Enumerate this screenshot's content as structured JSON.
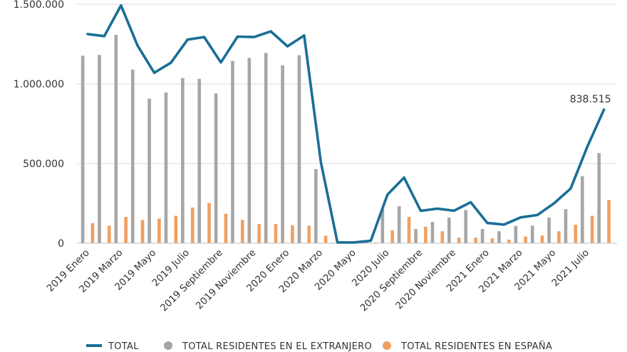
{
  "chart_data": {
    "type": "bar+line",
    "ylim": [
      0,
      1500000
    ],
    "y_ticks": [
      "0",
      "500.000",
      "1.000.000",
      "1.500.000"
    ],
    "y_tick_values": [
      0,
      500000,
      1000000,
      1500000
    ],
    "x_tick_labels": [
      "2019 Enero",
      "2019 Marzo",
      "2019 Mayo",
      "2019 Julio",
      "2019 Septiembre",
      "2019 Noviembre",
      "2020 Enero",
      "2020 Marzo",
      "2020 Mayo",
      "2020 Julio",
      "2020 Septiembre",
      "2020 Noviembre",
      "2021 Enero",
      "2021 Marzo",
      "2021 Mayo",
      "2021 Julio"
    ],
    "categories": [
      "2019 Enero",
      "2019 Febrero",
      "2019 Marzo",
      "2019 Abril",
      "2019 Mayo",
      "2019 Junio",
      "2019 Julio",
      "2019 Agosto",
      "2019 Septiembre",
      "2019 Octubre",
      "2019 Noviembre",
      "2019 Diciembre",
      "2020 Enero",
      "2020 Febrero",
      "2020 Marzo",
      "2020 Abril",
      "2020 Mayo",
      "2020 Junio",
      "2020 Julio",
      "2020 Agosto",
      "2020 Septiembre",
      "2020 Octubre",
      "2020 Noviembre",
      "2020 Diciembre",
      "2021 Enero",
      "2021 Febrero",
      "2021 Marzo",
      "2021 Abril",
      "2021 Mayo",
      "2021 Junio",
      "2021 Julio",
      "2021 Agosto"
    ],
    "series": [
      {
        "name": "TOTAL",
        "kind": "line",
        "color": "#1a6e96",
        "values": [
          1313000,
          1300000,
          1493000,
          1240000,
          1070000,
          1133000,
          1278000,
          1294000,
          1135000,
          1297000,
          1294000,
          1330000,
          1236000,
          1304000,
          510000,
          5000,
          5000,
          15000,
          305000,
          412000,
          203000,
          217000,
          204000,
          257000,
          127000,
          117000,
          162000,
          177000,
          250000,
          343000,
          606000,
          838515
        ]
      },
      {
        "name": "TOTAL RESIDENTES EN EL EXTRANJERO",
        "kind": "bar",
        "color": "#a6a6a6",
        "values": [
          1177000,
          1182000,
          1308000,
          1090000,
          908000,
          946000,
          1037000,
          1032000,
          940000,
          1144000,
          1163000,
          1195000,
          1117000,
          1180000,
          465000,
          3000,
          3000,
          9000,
          215000,
          232000,
          89000,
          133000,
          161000,
          208000,
          89000,
          75000,
          109000,
          110000,
          161000,
          214000,
          421000,
          566000
        ]
      },
      {
        "name": "TOTAL RESIDENTES EN ESPAÑA",
        "kind": "bar",
        "color": "#f0a062",
        "values": [
          126000,
          110000,
          165000,
          146000,
          155000,
          172000,
          224000,
          253000,
          185000,
          147000,
          120000,
          120000,
          113000,
          110000,
          47000,
          2000,
          2000,
          5000,
          81000,
          165000,
          104000,
          75000,
          35000,
          35000,
          30000,
          22000,
          42000,
          48000,
          75000,
          116000,
          172000,
          272000
        ]
      }
    ],
    "annotation": {
      "index": 31,
      "text": "838.515"
    },
    "legend": [
      {
        "label": "TOTAL",
        "marker": "line",
        "color": "#1a6e96"
      },
      {
        "label": "TOTAL RESIDENTES EN EL EXTRANJERO",
        "marker": "dot",
        "color": "#a6a6a6"
      },
      {
        "label": "TOTAL RESIDENTES EN ESPAÑA",
        "marker": "dot",
        "color": "#f0a062"
      }
    ],
    "legend_position": "bottom",
    "grid": true
  }
}
